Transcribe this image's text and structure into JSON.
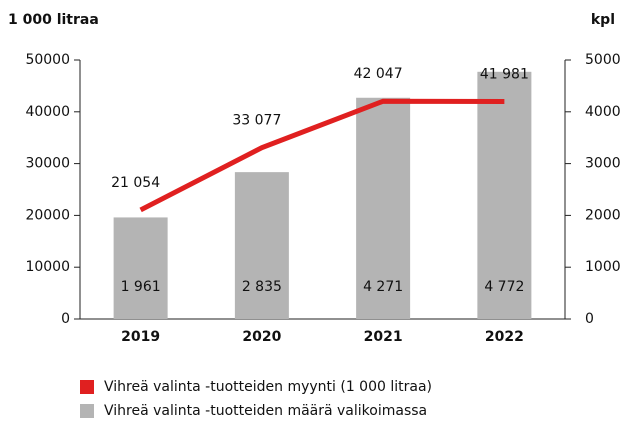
{
  "chart_data": {
    "type": "combo",
    "y_label": "1 000 litraa",
    "y2_label": "kpl",
    "categories": [
      "2019",
      "2020",
      "2021",
      "2022"
    ],
    "series": [
      {
        "name": "Vihreä valinta -tuotteiden myynti (1 000 litraa)",
        "type": "line",
        "axis": "y",
        "color": "#e02020",
        "values": [
          21054,
          33077,
          42047,
          41981
        ],
        "value_labels": [
          "21 054",
          "33 077",
          "42 047",
          "41 981"
        ]
      },
      {
        "name": "Vihreä valinta -tuotteiden määrä valikoimassa",
        "type": "bar",
        "axis": "y2",
        "color": "#b4b4b4",
        "values": [
          1961,
          2835,
          4271,
          4772
        ],
        "value_labels": [
          "1 961",
          "2 835",
          "4 271",
          "4 772"
        ]
      }
    ],
    "ylim": [
      0,
      50000
    ],
    "yticks": [
      0,
      10000,
      20000,
      30000,
      40000,
      50000
    ],
    "y2lim": [
      0,
      5000
    ],
    "y2ticks": [
      0,
      1000,
      2000,
      3000,
      4000,
      5000
    ]
  }
}
